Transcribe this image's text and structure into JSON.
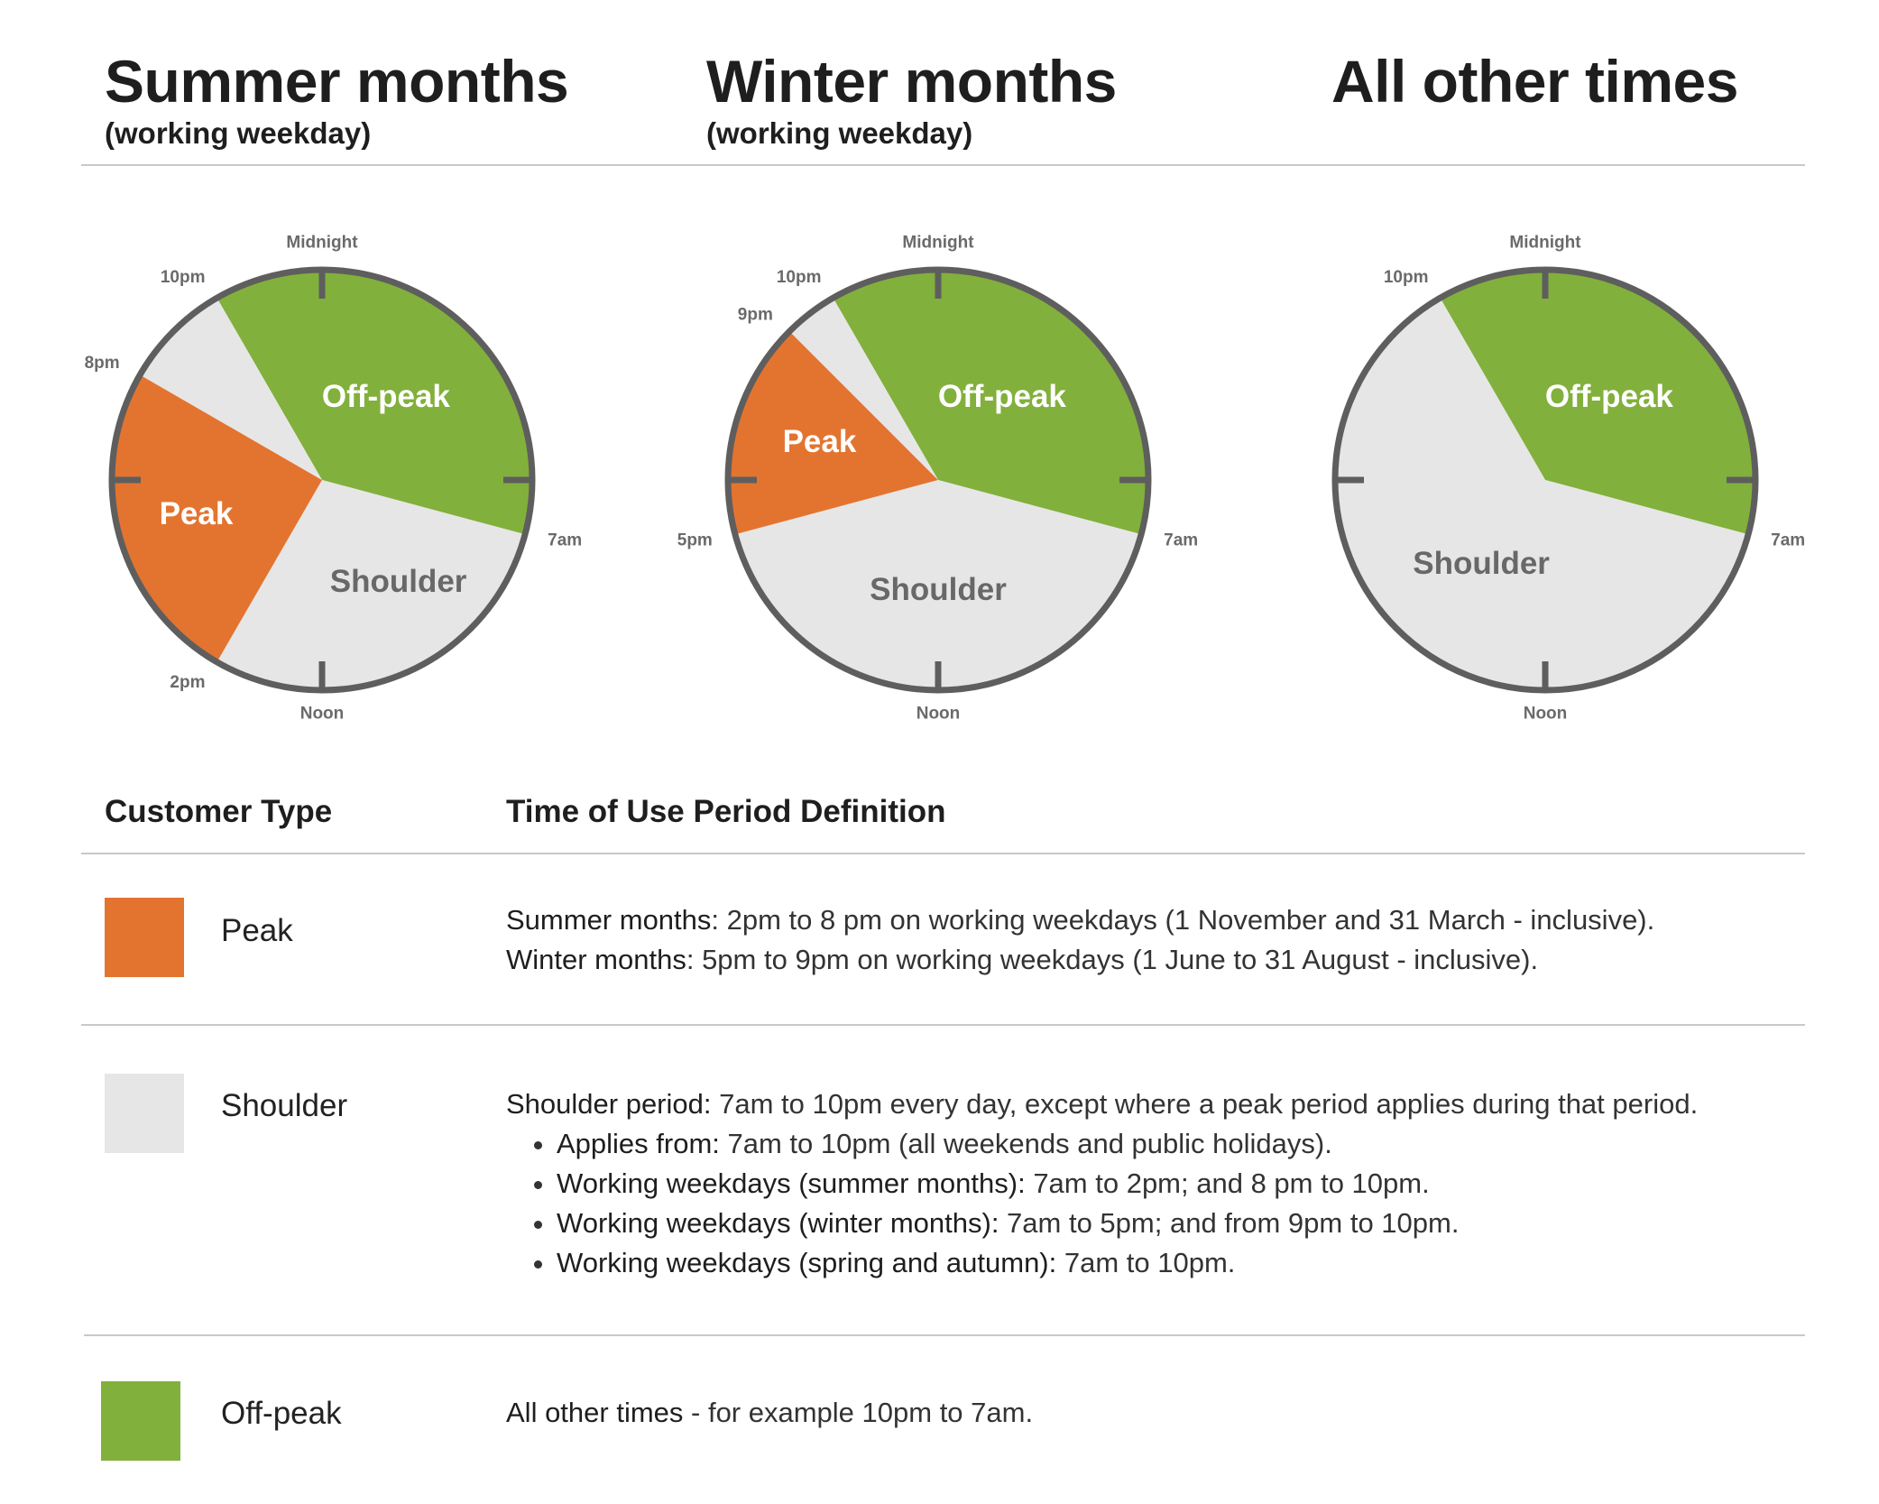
{
  "columns": [
    {
      "title": "Summer months",
      "subtitle": "(working weekday)"
    },
    {
      "title": "Winter months",
      "subtitle": "(working weekday)"
    },
    {
      "title": "All other times",
      "subtitle": ""
    }
  ],
  "colors": {
    "peak": "#e37430",
    "shoulder": "#e6e6e6",
    "offpeak": "#82b03c",
    "rim": "#5e5e5e",
    "hour_label": "#6a6a6a",
    "segment_text_dark": "#686868"
  },
  "clocks": [
    {
      "segments": [
        {
          "type": "offpeak",
          "from": 22,
          "to": 7,
          "label": "Off-peak"
        },
        {
          "type": "shoulder",
          "from": 7,
          "to": 14,
          "label": "Shoulder"
        },
        {
          "type": "peak",
          "from": 14,
          "to": 20,
          "label": "Peak"
        },
        {
          "type": "shoulder",
          "from": 20,
          "to": 22,
          "label": ""
        }
      ],
      "hour_labels": [
        {
          "hour": 0,
          "text": "Midnight"
        },
        {
          "hour": 7,
          "text": "7am"
        },
        {
          "hour": 12,
          "text": "Noon"
        },
        {
          "hour": 14,
          "text": "2pm"
        },
        {
          "hour": 20,
          "text": "8pm"
        },
        {
          "hour": 22,
          "text": "10pm"
        }
      ]
    },
    {
      "segments": [
        {
          "type": "offpeak",
          "from": 22,
          "to": 7,
          "label": "Off-peak"
        },
        {
          "type": "shoulder",
          "from": 7,
          "to": 17,
          "label": "Shoulder"
        },
        {
          "type": "peak",
          "from": 17,
          "to": 21,
          "label": "Peak"
        },
        {
          "type": "shoulder",
          "from": 21,
          "to": 22,
          "label": ""
        }
      ],
      "hour_labels": [
        {
          "hour": 0,
          "text": "Midnight"
        },
        {
          "hour": 7,
          "text": "7am"
        },
        {
          "hour": 12,
          "text": "Noon"
        },
        {
          "hour": 17,
          "text": "5pm"
        },
        {
          "hour": 21,
          "text": "9pm"
        },
        {
          "hour": 22,
          "text": "10pm"
        }
      ]
    },
    {
      "segments": [
        {
          "type": "offpeak",
          "from": 22,
          "to": 7,
          "label": "Off-peak"
        },
        {
          "type": "shoulder",
          "from": 7,
          "to": 22,
          "label": "Shoulder"
        }
      ],
      "hour_labels": [
        {
          "hour": 0,
          "text": "Midnight"
        },
        {
          "hour": 7,
          "text": "7am"
        },
        {
          "hour": 12,
          "text": "Noon"
        },
        {
          "hour": 22,
          "text": "10pm"
        }
      ]
    }
  ],
  "table": {
    "header_type": "Customer Type",
    "header_def": "Time of Use Period Definition",
    "rows": [
      {
        "type": "Peak",
        "lines": [
          {
            "term": "Summer months",
            "text": ": 2pm to 8 pm on working weekdays (1 November and 31 March - inclusive)."
          },
          {
            "term": "Winter months",
            "text": ": 5pm to 9pm on working weekdays (1 June to 31 August - inclusive)."
          }
        ]
      },
      {
        "type": "Shoulder",
        "intro": {
          "term": "Shoulder period:",
          "text": " 7am to 10pm every day, except where a peak period applies during that period."
        },
        "bullets": [
          {
            "term": "Applies from:",
            "text": " 7am to 10pm (all weekends and public holidays)."
          },
          {
            "term": "Working weekdays (summer months):",
            "text": " 7am to 2pm; and 8 pm to 10pm."
          },
          {
            "term": "Working weekdays (winter months):",
            "text": " 7am to 5pm; and from 9pm to 10pm."
          },
          {
            "term": "Working weekdays (spring and autumn):",
            "text": "  7am to 10pm."
          }
        ]
      },
      {
        "type": "Off-peak",
        "lines": [
          {
            "term": "All other times",
            "text": " - for example 10pm to 7am."
          }
        ]
      }
    ]
  }
}
